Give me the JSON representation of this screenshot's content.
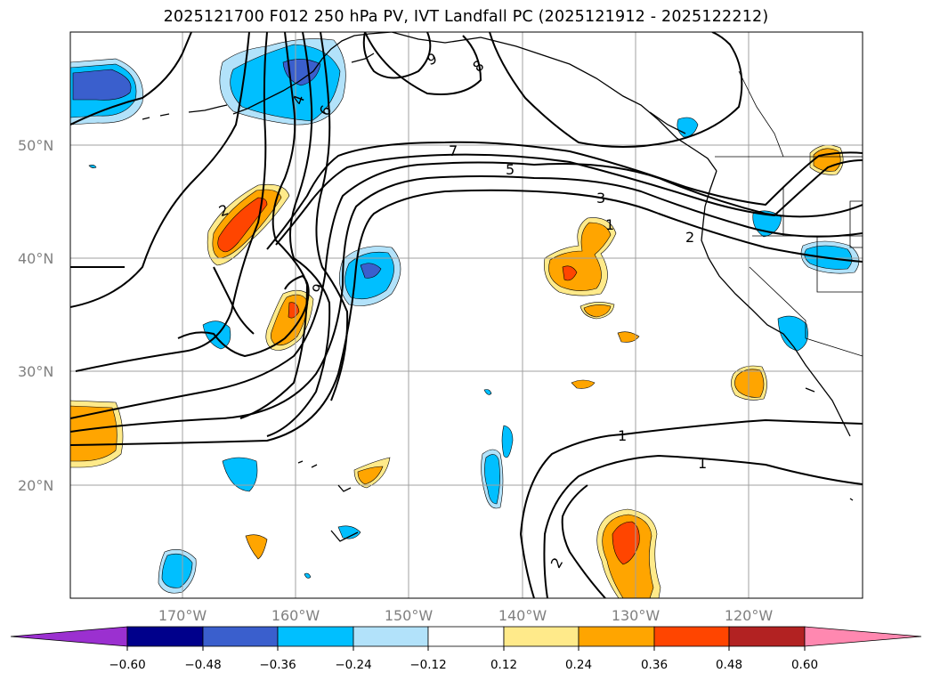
{
  "title": "2025121700 F012 250 hPa PV, IVT Landfall PC (2025121912 - 2025122212)",
  "map": {
    "lat_labels": [
      "50°N",
      "40°N",
      "30°N",
      "20°N"
    ],
    "lon_labels": [
      "170°W",
      "160°W",
      "150°W",
      "140°W",
      "130°W",
      "120°W"
    ],
    "extent": {
      "lon_min": -180,
      "lon_max": -110,
      "lat_min": 10,
      "lat_max": 60
    },
    "contour_labels": [
      "9",
      "8",
      "4",
      "6",
      "7",
      "5",
      "3",
      "1",
      "2",
      "2",
      "9",
      "1",
      "1",
      "2"
    ]
  },
  "colorbar": {
    "ticks": [
      "−0.60",
      "−0.48",
      "−0.36",
      "−0.24",
      "−0.12",
      "0.12",
      "0.24",
      "0.36",
      "0.48",
      "0.60"
    ],
    "colors": {
      "under": "#9b30d0",
      "c1": "#00008b",
      "c2": "#3a5fcd",
      "c3": "#00bfff",
      "c4": "#b2e2fa",
      "c5": "#ffffff",
      "c6": "#ffea8a",
      "c7": "#ffa500",
      "c8": "#ff4500",
      "c9": "#b22222",
      "over": "#ff88b0"
    }
  }
}
